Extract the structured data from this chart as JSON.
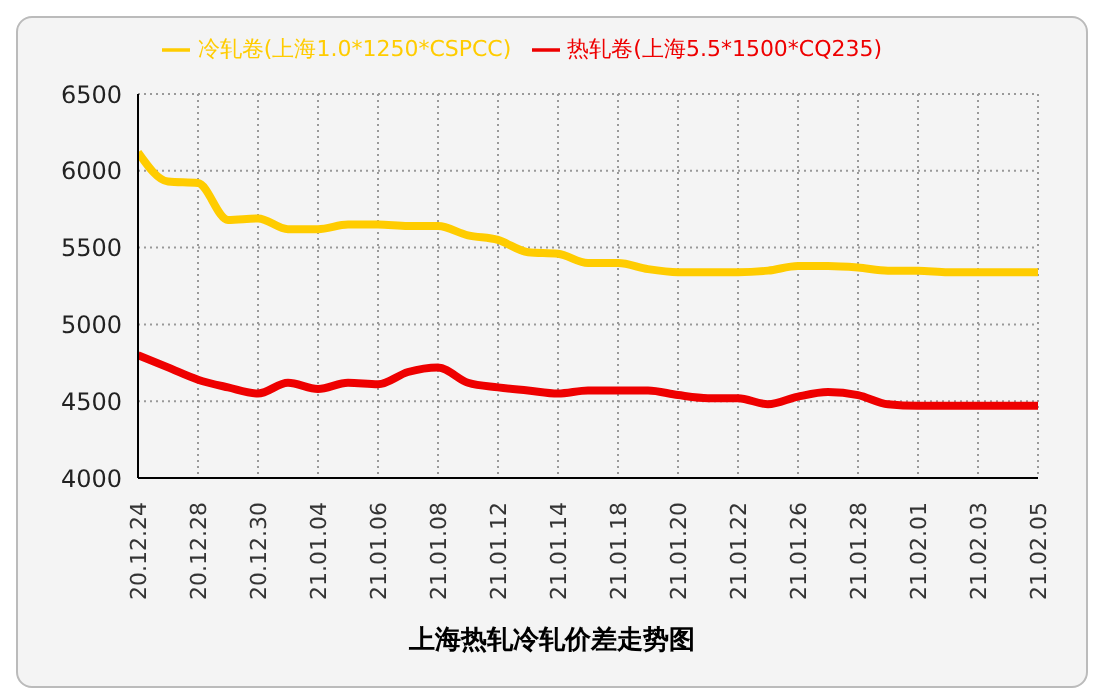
{
  "chart_data": {
    "type": "line",
    "title": "上海热轧冷轧价差走势图",
    "categories": [
      "20.12.24",
      null,
      "20.12.28",
      null,
      "20.12.30",
      null,
      "21.01.04",
      null,
      "21.01.06",
      null,
      "21.01.08",
      null,
      "21.01.12",
      null,
      "21.01.14",
      null,
      "21.01.18",
      null,
      "21.01.20",
      null,
      "21.01.22",
      null,
      "21.01.26",
      null,
      "21.01.28",
      null,
      "21.02.01",
      null,
      "21.02.03",
      null,
      "21.02.05"
    ],
    "series": [
      {
        "name": "冷轧卷(上海1.0*1250*CSPCC)",
        "color": "#ffcc00",
        "values": [
          6120,
          5930,
          5920,
          5680,
          5690,
          5620,
          5620,
          5650,
          5650,
          5640,
          5640,
          5580,
          5550,
          5470,
          5460,
          5400,
          5400,
          5360,
          5340,
          5340,
          5340,
          5350,
          5380,
          5380,
          5370,
          5350,
          5350,
          5340,
          5340,
          5340,
          5340
        ]
      },
      {
        "name": "热轧卷(上海5.5*1500*CQ235)",
        "color": "#ee0000",
        "values": [
          4800,
          4720,
          4640,
          4590,
          4550,
          4620,
          4580,
          4620,
          4610,
          4690,
          4720,
          4620,
          4590,
          4570,
          4550,
          4570,
          4570,
          4570,
          4540,
          4520,
          4520,
          4480,
          4530,
          4560,
          4540,
          4480,
          4470,
          4470,
          4470,
          4470,
          4470
        ]
      }
    ],
    "ylim": [
      4000,
      6500
    ],
    "yticks": [
      4000,
      4500,
      5000,
      5500,
      6000,
      6500
    ],
    "grid": true,
    "legend": "top",
    "marker": "none",
    "line_style": "solid"
  }
}
